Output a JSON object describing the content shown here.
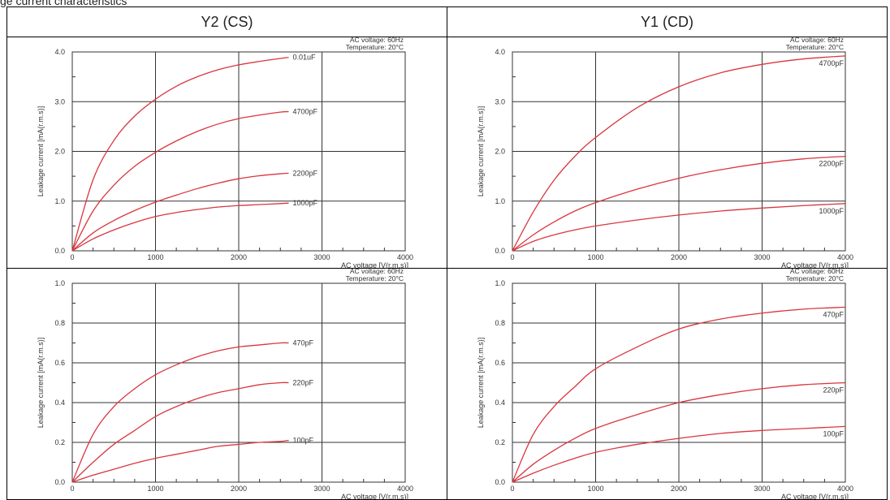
{
  "page_title": "ge current characteristics",
  "columns": [
    "Y2 (CS)",
    "Y1 (CD)"
  ],
  "chart_data": [
    {
      "type": "line",
      "panel": "Y2 (CS) top",
      "condition_line1": "AC voltage: 60Hz",
      "condition_line2": "Temperature: 20°C",
      "xlabel": "AC voltage [V(r.m.s)]",
      "ylabel": "Leakage current [mA(r.m.s)]",
      "xlim": [
        0,
        4000
      ],
      "ylim": [
        0,
        4.0
      ],
      "x_ticks": [
        0,
        1000,
        2000,
        3000,
        4000
      ],
      "y_ticks": [
        0.0,
        1.0,
        2.0,
        3.0,
        4.0
      ],
      "y_tick_labels": [
        "0.0",
        "1.0",
        "2.0",
        "3.0",
        "4.0"
      ],
      "color": "#d9363e",
      "series": [
        {
          "name": "0.01uF",
          "x": [
            0,
            250,
            500,
            750,
            1000,
            1250,
            1500,
            1750,
            2000,
            2250,
            2500,
            2600
          ],
          "y": [
            0,
            1.43,
            2.22,
            2.71,
            3.05,
            3.31,
            3.5,
            3.64,
            3.74,
            3.81,
            3.87,
            3.89
          ]
        },
        {
          "name": "4700pF",
          "x": [
            0,
            250,
            500,
            750,
            1000,
            1250,
            1500,
            1750,
            2000,
            2250,
            2500,
            2600
          ],
          "y": [
            0,
            0.8,
            1.32,
            1.7,
            1.98,
            2.21,
            2.4,
            2.55,
            2.66,
            2.73,
            2.79,
            2.8
          ]
        },
        {
          "name": "2200pF",
          "x": [
            0,
            250,
            500,
            750,
            1000,
            1250,
            1500,
            1750,
            2000,
            2250,
            2500,
            2600
          ],
          "y": [
            0,
            0.36,
            0.61,
            0.81,
            0.98,
            1.12,
            1.25,
            1.36,
            1.45,
            1.51,
            1.55,
            1.56
          ]
        },
        {
          "name": "1000pF",
          "x": [
            0,
            250,
            500,
            750,
            1000,
            1250,
            1500,
            1750,
            2000,
            2250,
            2500,
            2600
          ],
          "y": [
            0,
            0.24,
            0.42,
            0.57,
            0.69,
            0.77,
            0.83,
            0.88,
            0.91,
            0.93,
            0.95,
            0.96
          ]
        }
      ]
    },
    {
      "type": "line",
      "panel": "Y1 (CD) top",
      "condition_line1": "AC voltage: 60Hz",
      "condition_line2": "Temperature: 20°C",
      "xlabel": "AC voltage [V(r.m.s)]",
      "ylabel": "Leakage current [mA(r.m.s)]",
      "xlim": [
        0,
        4000
      ],
      "ylim": [
        0,
        4.0
      ],
      "x_ticks": [
        0,
        1000,
        2000,
        3000,
        4000
      ],
      "y_ticks": [
        0.0,
        1.0,
        2.0,
        3.0,
        4.0
      ],
      "y_tick_labels": [
        "0.0",
        "1.0",
        "2.0",
        "3.0",
        "4.0"
      ],
      "color": "#d9363e",
      "series": [
        {
          "name": "4700pF",
          "x": [
            0,
            250,
            500,
            750,
            1000,
            1500,
            2000,
            2500,
            3000,
            3500,
            4000
          ],
          "y": [
            0,
            0.78,
            1.42,
            1.9,
            2.28,
            2.88,
            3.3,
            3.58,
            3.75,
            3.86,
            3.92
          ]
        },
        {
          "name": "2200pF",
          "x": [
            0,
            250,
            500,
            750,
            1000,
            1500,
            2000,
            2500,
            3000,
            3500,
            4000
          ],
          "y": [
            0,
            0.32,
            0.58,
            0.8,
            0.97,
            1.24,
            1.46,
            1.63,
            1.76,
            1.85,
            1.9
          ]
        },
        {
          "name": "1000pF",
          "x": [
            0,
            250,
            500,
            750,
            1000,
            1500,
            2000,
            2500,
            3000,
            3500,
            4000
          ],
          "y": [
            0,
            0.19,
            0.32,
            0.42,
            0.5,
            0.62,
            0.72,
            0.8,
            0.86,
            0.91,
            0.95
          ]
        }
      ]
    },
    {
      "type": "line",
      "panel": "Y2 (CS) bottom",
      "condition_line1": "AC voltage: 60Hz",
      "condition_line2": "Temperature: 20°C",
      "xlabel": "AC voltage [V(r.m.s)]",
      "ylabel": "Leakage current [mA(r.m.s)]",
      "xlim": [
        0,
        4000
      ],
      "ylim": [
        0,
        1.0
      ],
      "x_ticks": [
        0,
        1000,
        2000,
        3000,
        4000
      ],
      "y_ticks": [
        0.0,
        0.2,
        0.4,
        0.6,
        0.8,
        1.0
      ],
      "y_tick_labels": [
        "0.0",
        "0.2",
        "0.4",
        "0.6",
        "0.8",
        "1.0"
      ],
      "color": "#d9363e",
      "series": [
        {
          "name": "470pF",
          "x": [
            0,
            250,
            500,
            750,
            1000,
            1250,
            1500,
            1750,
            2000,
            2250,
            2500,
            2600
          ],
          "y": [
            0,
            0.24,
            0.38,
            0.47,
            0.54,
            0.59,
            0.63,
            0.66,
            0.68,
            0.69,
            0.7,
            0.7
          ]
        },
        {
          "name": "220pF",
          "x": [
            0,
            250,
            500,
            750,
            1000,
            1250,
            1500,
            1750,
            2000,
            2250,
            2500,
            2600
          ],
          "y": [
            0,
            0.1,
            0.19,
            0.26,
            0.33,
            0.38,
            0.42,
            0.45,
            0.47,
            0.49,
            0.5,
            0.5
          ]
        },
        {
          "name": "100pF",
          "x": [
            0,
            250,
            500,
            750,
            1000,
            1250,
            1500,
            1750,
            2000,
            2250,
            2500,
            2600
          ],
          "y": [
            0,
            0.035,
            0.065,
            0.095,
            0.12,
            0.14,
            0.16,
            0.18,
            0.19,
            0.2,
            0.205,
            0.21
          ]
        }
      ]
    },
    {
      "type": "line",
      "panel": "Y1 (CD) bottom",
      "condition_line1": "AC voltage: 60Hz",
      "condition_line2": "Temperature: 20°C",
      "xlabel": "AC voltage [V(r.m.s)]",
      "ylabel": "Leakage current [mA(r.m.s)]",
      "xlim": [
        0,
        4000
      ],
      "ylim": [
        0,
        1.0
      ],
      "x_ticks": [
        0,
        1000,
        2000,
        3000,
        4000
      ],
      "y_ticks": [
        0.0,
        0.2,
        0.4,
        0.6,
        0.8,
        1.0
      ],
      "y_tick_labels": [
        "0.0",
        "0.2",
        "0.4",
        "0.6",
        "0.8",
        "1.0"
      ],
      "color": "#d9363e",
      "series": [
        {
          "name": "470pF",
          "x": [
            0,
            250,
            500,
            750,
            1000,
            1500,
            2000,
            2500,
            3000,
            3500,
            4000
          ],
          "y": [
            0,
            0.24,
            0.38,
            0.48,
            0.57,
            0.68,
            0.77,
            0.82,
            0.85,
            0.87,
            0.88
          ]
        },
        {
          "name": "220pF",
          "x": [
            0,
            250,
            500,
            750,
            1000,
            1500,
            2000,
            2500,
            3000,
            3500,
            4000
          ],
          "y": [
            0,
            0.09,
            0.16,
            0.22,
            0.27,
            0.34,
            0.4,
            0.44,
            0.47,
            0.49,
            0.5
          ]
        },
        {
          "name": "100pF",
          "x": [
            0,
            250,
            500,
            750,
            1000,
            1500,
            2000,
            2500,
            3000,
            3500,
            4000
          ],
          "y": [
            0,
            0.045,
            0.085,
            0.12,
            0.15,
            0.19,
            0.22,
            0.245,
            0.26,
            0.27,
            0.28
          ]
        }
      ]
    }
  ]
}
